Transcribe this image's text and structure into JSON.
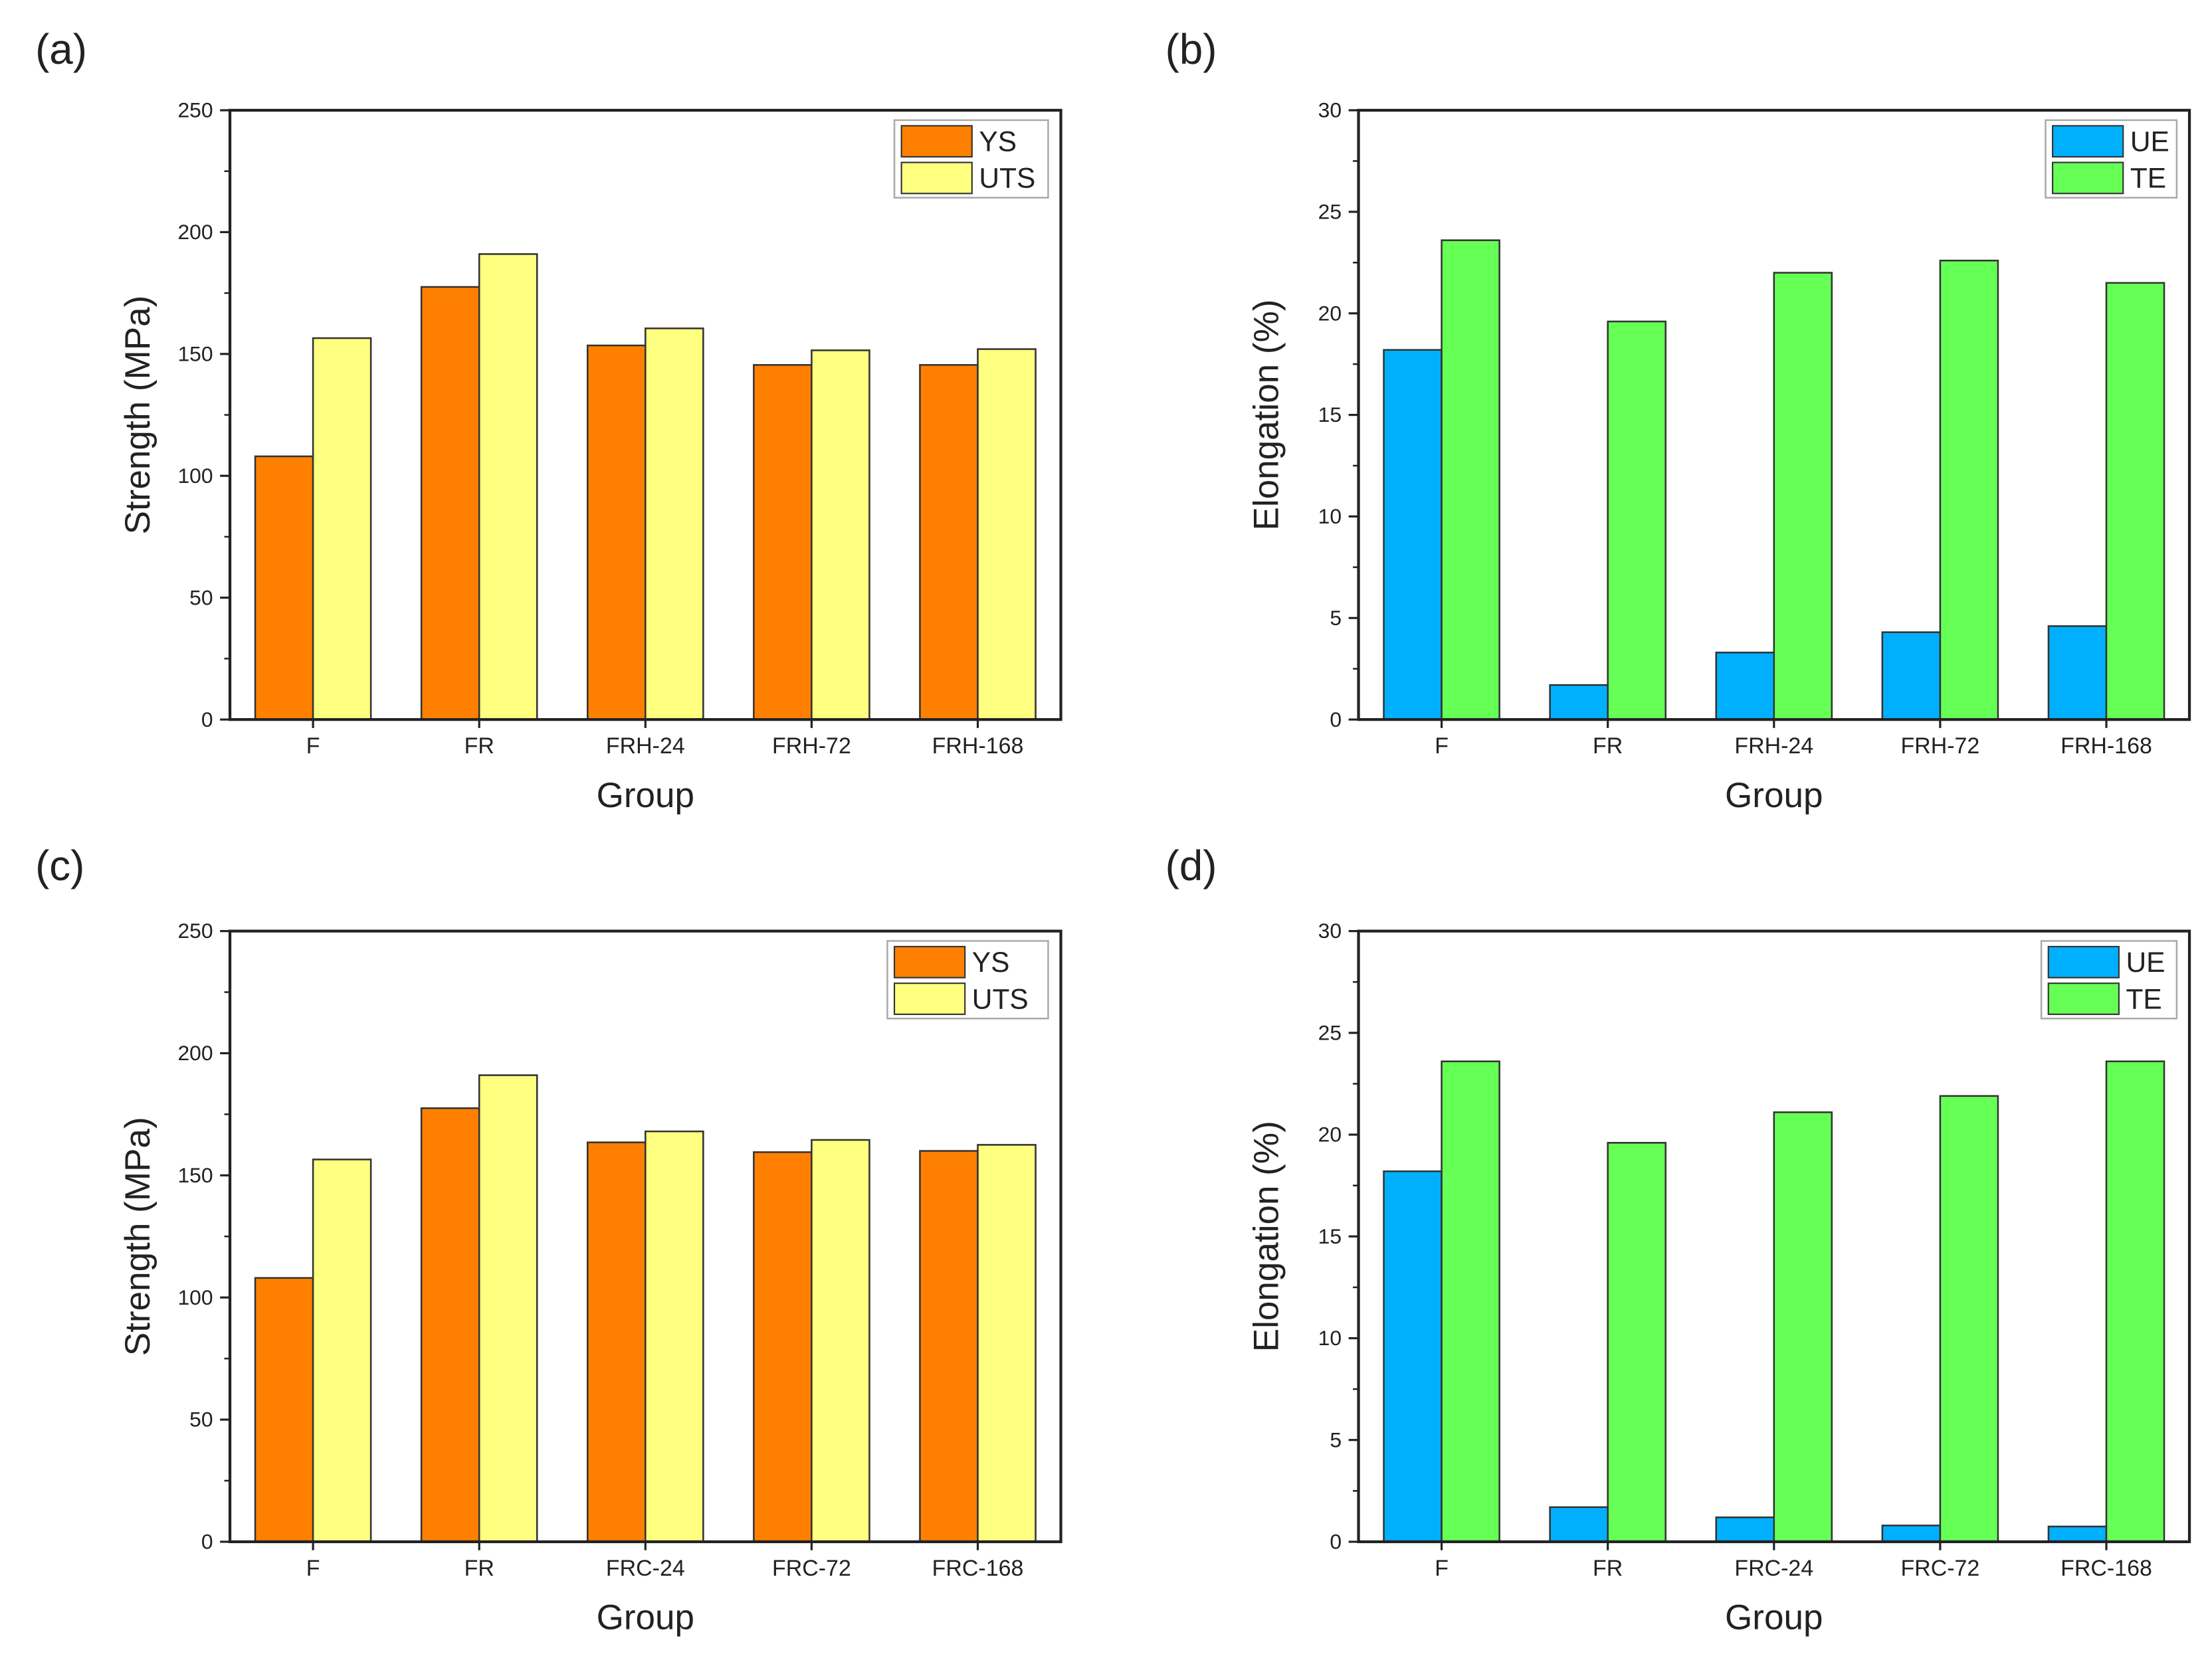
{
  "chart_data": [
    {
      "panel_label": "(a)",
      "type": "bar",
      "categories": [
        "F",
        "FR",
        "FRH-24",
        "FRH-72",
        "FRH-168"
      ],
      "series": [
        {
          "name": "YS",
          "color": "#FF8000",
          "values": [
            108,
            177.5,
            153.5,
            145.5,
            145.5
          ]
        },
        {
          "name": "UTS",
          "color": "#FFFF80",
          "values": [
            156.5,
            191,
            160.5,
            151.5,
            152
          ]
        }
      ],
      "xlabel": "Group",
      "ylabel": "Strength (MPa)",
      "ylim": [
        0,
        250
      ],
      "yticks": [
        "0",
        "50",
        "100",
        "150",
        "200",
        "250"
      ],
      "yticks_values": [
        0,
        50,
        100,
        150,
        200,
        250
      ],
      "grid": false,
      "legend": "top-right"
    },
    {
      "panel_label": "(b)",
      "type": "bar",
      "categories": [
        "F",
        "FR",
        "FRH-24",
        "FRH-72",
        "FRH-168"
      ],
      "series": [
        {
          "name": "UE",
          "color": "#00B0FF",
          "values": [
            18.2,
            1.7,
            3.3,
            4.3,
            4.6
          ]
        },
        {
          "name": "TE",
          "color": "#66FF55",
          "values": [
            23.6,
            19.6,
            22.0,
            22.6,
            21.5
          ]
        }
      ],
      "xlabel": "Group",
      "ylabel": "Elongation (%)",
      "ylim": [
        0,
        30
      ],
      "yticks": [
        "0",
        "5",
        "10",
        "15",
        "20",
        "25",
        "30"
      ],
      "yticks_values": [
        0,
        5,
        10,
        15,
        20,
        25,
        30
      ],
      "grid": false,
      "legend": "top-right"
    },
    {
      "panel_label": "(c)",
      "type": "bar",
      "categories": [
        "F",
        "FR",
        "FRC-24",
        "FRC-72",
        "FRC-168"
      ],
      "series": [
        {
          "name": "YS",
          "color": "#FF8000",
          "values": [
            108,
            177.5,
            163.5,
            159.5,
            160
          ]
        },
        {
          "name": "UTS",
          "color": "#FFFF80",
          "values": [
            156.5,
            191,
            168,
            164.5,
            162.5
          ]
        }
      ],
      "xlabel": "Group",
      "ylabel": "Strength (MPa)",
      "ylim": [
        0,
        250
      ],
      "yticks": [
        "0",
        "50",
        "100",
        "150",
        "200",
        "250"
      ],
      "yticks_values": [
        0,
        50,
        100,
        150,
        200,
        250
      ],
      "grid": false,
      "legend": "top-right"
    },
    {
      "panel_label": "(d)",
      "type": "bar",
      "categories": [
        "F",
        "FR",
        "FRC-24",
        "FRC-72",
        "FRC-168"
      ],
      "series": [
        {
          "name": "UE",
          "color": "#00B0FF",
          "values": [
            18.2,
            1.7,
            1.2,
            0.8,
            0.75
          ]
        },
        {
          "name": "TE",
          "color": "#66FF55",
          "values": [
            23.6,
            19.6,
            21.1,
            21.9,
            23.6
          ]
        }
      ],
      "xlabel": "Group",
      "ylabel": "Elongation (%)",
      "ylim": [
        0,
        30
      ],
      "yticks": [
        "0",
        "5",
        "10",
        "15",
        "20",
        "25",
        "30"
      ],
      "yticks_values": [
        0,
        5,
        10,
        15,
        20,
        25,
        30
      ],
      "grid": false,
      "legend": "top-right"
    }
  ]
}
